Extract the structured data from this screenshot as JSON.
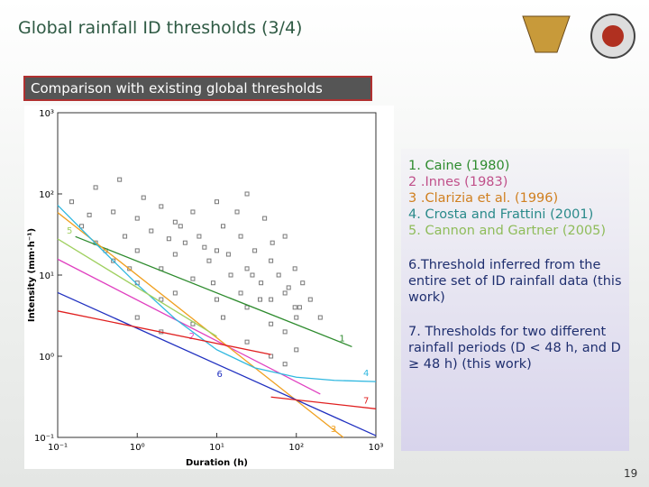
{
  "slide": {
    "title": "Global rainfall ID thresholds (3/4)",
    "subtitle": "Comparison with existing global thresholds",
    "page_number": "19"
  },
  "chart_data": {
    "type": "line",
    "x_label": "Duration (h)",
    "y_label": "Intensity (mm·h⁻¹)",
    "log_x": true,
    "log_y": true,
    "xlim": [
      0.1,
      1000
    ],
    "ylim": [
      0.1,
      1000
    ],
    "xticks": [
      {
        "value": 0.1,
        "label": "10⁻¹"
      },
      {
        "value": 1,
        "label": "10⁰"
      },
      {
        "value": 10,
        "label": "10¹"
      },
      {
        "value": 100,
        "label": "10²"
      },
      {
        "value": 1000,
        "label": "10³"
      }
    ],
    "yticks": [
      {
        "value": 0.1,
        "label": "10⁻¹"
      },
      {
        "value": 1,
        "label": "10⁰"
      },
      {
        "value": 10,
        "label": "10¹"
      },
      {
        "value": 100,
        "label": "10²"
      },
      {
        "value": 1000,
        "label": "10³"
      }
    ],
    "points": {
      "color": "#777777",
      "x": [
        0.2,
        0.3,
        0.5,
        0.5,
        0.7,
        1,
        1,
        1,
        1.5,
        2,
        2,
        2,
        3,
        3,
        3,
        4,
        5,
        5,
        6,
        8,
        10,
        10,
        10,
        12,
        15,
        20,
        20,
        24,
        24,
        24,
        30,
        36,
        40,
        48,
        48,
        48,
        60,
        72,
        72,
        72,
        96,
        96,
        100,
        120,
        150,
        0.15,
        0.25,
        0.4,
        0.8,
        1.2,
        2.5,
        3.5,
        7,
        9,
        14,
        18,
        28,
        35,
        50,
        80,
        110,
        200,
        0.3,
        0.6,
        1,
        2,
        5,
        12,
        24,
        48,
        72,
        100
      ],
      "values": [
        40,
        25,
        60,
        15,
        30,
        50,
        20,
        8,
        35,
        70,
        12,
        5,
        45,
        18,
        6,
        25,
        60,
        9,
        30,
        15,
        80,
        20,
        5,
        40,
        10,
        30,
        6,
        100,
        12,
        4,
        20,
        8,
        50,
        15,
        5,
        2.5,
        10,
        30,
        6,
        2,
        12,
        4,
        3,
        8,
        5,
        80,
        55,
        20,
        12,
        90,
        28,
        40,
        22,
        8,
        18,
        60,
        10,
        5,
        25,
        7,
        4,
        3,
        120,
        150,
        3,
        2,
        2.5,
        3,
        1.5,
        1,
        0.8,
        1.2
      ]
    },
    "series": [
      {
        "name": "1. Caine (1980)",
        "label": "1",
        "color": "#2e8b2e",
        "legend_color": "#2e8b2e",
        "x": [
          0.167,
          500
        ],
        "values": [
          29.8,
          1.31
        ]
      },
      {
        "name": "2 .Innes (1983)",
        "label": "2",
        "color": "#e040c0",
        "legend_color": "#c0508a",
        "x": [
          0.1,
          200
        ],
        "values": [
          15.7,
          0.342
        ]
      },
      {
        "name": "3 .Clarizia et al. (1996)",
        "label": "3",
        "color": "#f0a020",
        "legend_color": "#d08020",
        "x": [
          0.1,
          390
        ],
        "values": [
          58.9,
          0.1
        ]
      },
      {
        "name": "4. Crosta and Frattini (2001)",
        "label": "4",
        "color": "#30b8e0",
        "legend_color": "#2a8a8a",
        "x": [
          0.1,
          0.3,
          1,
          3,
          10,
          30,
          100,
          300,
          1000
        ],
        "values": [
          72.5,
          24.48,
          7.68,
          2.88,
          1.2,
          0.72,
          0.552,
          0.504,
          0.4872
        ]
      },
      {
        "name": "5. Cannon and Gartner (2005)",
        "label": "5",
        "color": "#a0d060",
        "legend_color": "#8fbc5a",
        "x": [
          0.1,
          10
        ],
        "values": [
          27.9,
          1.76
        ]
      },
      {
        "name": "6.Threshold inferred from the entire set of ID rainfall data (this work)",
        "label": "6",
        "color": "#2030c0",
        "legend_color": "#1f2f6f",
        "x": [
          0.1,
          1000
        ],
        "values": [
          6.08,
          0.105
        ]
      },
      {
        "name": "7. Thresholds for two different rainfall periods (D < 48 h, and D ≥ 48 h) (this work)",
        "label": "7",
        "color": "#e02020",
        "legend_color": "#1f2f6f",
        "x": [
          0.1,
          48,
          48,
          48,
          1000
        ],
        "values": [
          3.61,
          1.05,
          null,
          0.314,
          0.225
        ]
      }
    ]
  }
}
